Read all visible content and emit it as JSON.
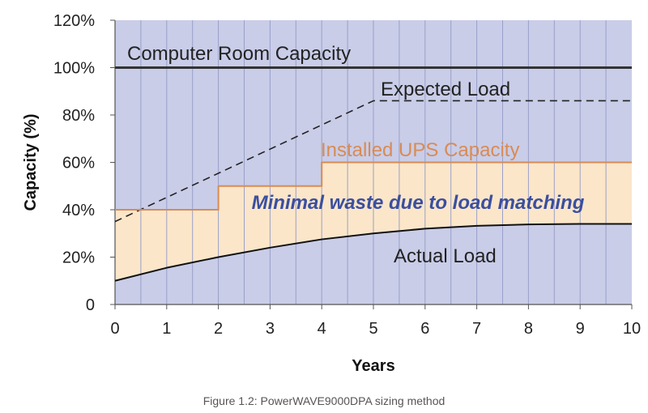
{
  "chart_data": {
    "type": "line",
    "xlabel": "Years",
    "ylabel": "Capacity (%)",
    "xlim": [
      0,
      10
    ],
    "ylim": [
      0,
      120
    ],
    "x_ticks": [
      "0",
      "1",
      "2",
      "3",
      "4",
      "5",
      "6",
      "7",
      "8",
      "9",
      "10"
    ],
    "y_ticks": [
      "0",
      "20%",
      "40%",
      "60%",
      "80%",
      "100%",
      "120%"
    ],
    "grid": "vertical",
    "series": [
      {
        "name": "Computer Room Capacity",
        "style": "solid",
        "color": "#333333",
        "x": [
          0,
          10
        ],
        "y": [
          100,
          100
        ]
      },
      {
        "name": "Expected Load",
        "style": "dashed",
        "color": "#222222",
        "x": [
          0,
          5,
          10
        ],
        "y": [
          35,
          86,
          86
        ]
      },
      {
        "name": "Installed UPS Capacity",
        "style": "step",
        "color": "#d98b54",
        "x": [
          0,
          2,
          2,
          4,
          4,
          10
        ],
        "y": [
          40,
          40,
          50,
          50,
          60,
          60
        ]
      },
      {
        "name": "Actual Load",
        "style": "solid",
        "color": "#111111",
        "x": [
          0,
          1,
          2,
          3,
          4,
          5,
          6,
          7,
          8,
          9,
          10
        ],
        "y": [
          10,
          15.5,
          20,
          24,
          27.5,
          30,
          32,
          33.2,
          33.8,
          34,
          34
        ]
      }
    ],
    "annotations": [
      {
        "text": "Computer Room Capacity",
        "color": "#222222",
        "italic": false
      },
      {
        "text": "Expected Load",
        "color": "#222222",
        "italic": false
      },
      {
        "text": "Installed UPS Capacity",
        "color": "#d98b54",
        "italic": false
      },
      {
        "text": "Minimal waste due to load matching",
        "color": "#3a4fa0",
        "italic": true
      },
      {
        "text": "Actual Load",
        "color": "#222222",
        "italic": false
      }
    ],
    "colors": {
      "plot_background": "#c9cde8",
      "fill_between_ups_and_load": "#fbe6c9",
      "grid": "#9aa0c8"
    }
  },
  "caption": "Figure 1.2: PowerWAVE9000DPA sizing method"
}
